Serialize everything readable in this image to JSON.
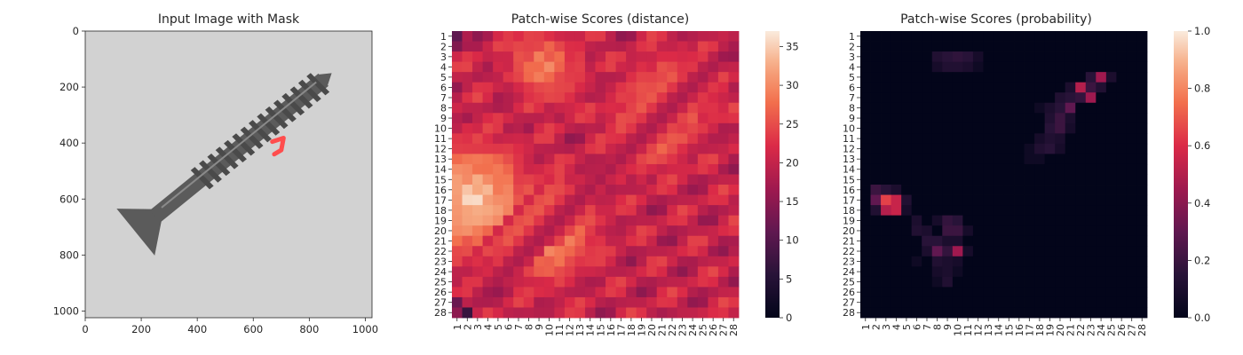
{
  "chart_data": [
    {
      "type": "image",
      "title": "Input Image with Mask",
      "x_ticks": [
        "0",
        "200",
        "400",
        "600",
        "800",
        "1000"
      ],
      "y_ticks": [
        "0",
        "200",
        "400",
        "600",
        "800",
        "1000"
      ],
      "x_range": [
        0,
        1024
      ],
      "y_range": [
        0,
        1024
      ],
      "image": {
        "object": "screw",
        "background_color": "#d2d2d2",
        "object_color": "#5b5b5b",
        "mask_color": "#ff4d4d",
        "head_center": [
          180,
          718
        ],
        "tip": [
          880,
          150
        ],
        "mask_points": [
          [
            668,
            395
          ],
          [
            708,
            382
          ],
          [
            700,
            425
          ],
          [
            675,
            440
          ]
        ]
      }
    },
    {
      "type": "heatmap",
      "title": "Patch-wise Scores (distance)",
      "x_labels": [
        "1",
        "2",
        "3",
        "4",
        "5",
        "6",
        "7",
        "8",
        "9",
        "10",
        "11",
        "12",
        "13",
        "14",
        "15",
        "16",
        "17",
        "18",
        "19",
        "20",
        "21",
        "22",
        "23",
        "24",
        "25",
        "26",
        "27",
        "28"
      ],
      "y_labels": [
        "1",
        "2",
        "3",
        "4",
        "5",
        "6",
        "7",
        "8",
        "9",
        "10",
        "11",
        "12",
        "13",
        "14",
        "15",
        "16",
        "17",
        "18",
        "19",
        "20",
        "21",
        "22",
        "23",
        "24",
        "25",
        "26",
        "27",
        "28"
      ],
      "colorbar": {
        "min": 0,
        "max": 37,
        "ticks": [
          "0",
          "5",
          "10",
          "15",
          "20",
          "25",
          "30",
          "35"
        ]
      },
      "colormap": "rocket",
      "grid_size": 28,
      "value_model": {
        "base": 20,
        "background_hotspots": [
          {
            "row": 17,
            "col": 2.5,
            "value": 36
          },
          {
            "row": 4,
            "col": 9.5,
            "value": 30
          },
          {
            "row": 20,
            "col": 9.5,
            "value": 34
          },
          {
            "row": 7,
            "col": 22,
            "value": 31
          },
          {
            "row": 10,
            "col": 20,
            "value": 31
          }
        ],
        "low_values": [
          {
            "row": 1,
            "col": 1,
            "value": 11
          },
          {
            "row": 28,
            "col": 2,
            "value": 7
          },
          {
            "row": 27,
            "col": 1,
            "value": 12
          },
          {
            "row": 2,
            "col": 1,
            "value": 14
          }
        ]
      }
    },
    {
      "type": "heatmap",
      "title": "Patch-wise Scores (probability)",
      "x_labels": [
        "1",
        "2",
        "3",
        "4",
        "5",
        "6",
        "7",
        "8",
        "9",
        "10",
        "11",
        "12",
        "13",
        "14",
        "15",
        "16",
        "17",
        "18",
        "19",
        "20",
        "21",
        "22",
        "23",
        "24",
        "25",
        "26",
        "27",
        "28"
      ],
      "y_labels": [
        "1",
        "2",
        "3",
        "4",
        "5",
        "6",
        "7",
        "8",
        "9",
        "10",
        "11",
        "12",
        "13",
        "14",
        "15",
        "16",
        "17",
        "18",
        "19",
        "20",
        "21",
        "22",
        "23",
        "24",
        "25",
        "26",
        "27",
        "28"
      ],
      "colorbar": {
        "min": 0.0,
        "max": 1.0,
        "ticks": [
          "0.0",
          "0.2",
          "0.4",
          "0.6",
          "0.8",
          "1.0"
        ]
      },
      "colormap": "rocket",
      "grid_size": 28,
      "nonzero_cells": [
        [
          3,
          9,
          0.15
        ],
        [
          3,
          10,
          0.17
        ],
        [
          3,
          11,
          0.15
        ],
        [
          3,
          8,
          0.12
        ],
        [
          3,
          12,
          0.08
        ],
        [
          4,
          9,
          0.12
        ],
        [
          4,
          10,
          0.12
        ],
        [
          4,
          11,
          0.1
        ],
        [
          4,
          8,
          0.08
        ],
        [
          4,
          12,
          0.05
        ],
        [
          5,
          24,
          0.45
        ],
        [
          5,
          23,
          0.15
        ],
        [
          5,
          25,
          0.1
        ],
        [
          6,
          22,
          0.5
        ],
        [
          6,
          23,
          0.2
        ],
        [
          6,
          24,
          0.12
        ],
        [
          6,
          21,
          0.1
        ],
        [
          7,
          22,
          0.18
        ],
        [
          7,
          23,
          0.45
        ],
        [
          7,
          20,
          0.12
        ],
        [
          7,
          21,
          0.15
        ],
        [
          8,
          20,
          0.15
        ],
        [
          8,
          21,
          0.3
        ],
        [
          8,
          19,
          0.1
        ],
        [
          8,
          18,
          0.05
        ],
        [
          9,
          20,
          0.2
        ],
        [
          9,
          19,
          0.12
        ],
        [
          9,
          21,
          0.1
        ],
        [
          10,
          20,
          0.2
        ],
        [
          10,
          19,
          0.15
        ],
        [
          10,
          21,
          0.08
        ],
        [
          11,
          19,
          0.12
        ],
        [
          11,
          18,
          0.08
        ],
        [
          11,
          20,
          0.1
        ],
        [
          12,
          19,
          0.15
        ],
        [
          12,
          18,
          0.12
        ],
        [
          12,
          20,
          0.08
        ],
        [
          12,
          17,
          0.05
        ],
        [
          13,
          17,
          0.05
        ],
        [
          13,
          18,
          0.05
        ],
        [
          16,
          2,
          0.2
        ],
        [
          16,
          3,
          0.15
        ],
        [
          16,
          4,
          0.1
        ],
        [
          17,
          2,
          0.3
        ],
        [
          17,
          3,
          0.65
        ],
        [
          17,
          4,
          0.55
        ],
        [
          17,
          5,
          0.12
        ],
        [
          18,
          3,
          0.5
        ],
        [
          18,
          4,
          0.55
        ],
        [
          18,
          2,
          0.12
        ],
        [
          18,
          5,
          0.08
        ],
        [
          19,
          6,
          0.1
        ],
        [
          19,
          9,
          0.18
        ],
        [
          19,
          10,
          0.15
        ],
        [
          19,
          8,
          0.08
        ],
        [
          20,
          6,
          0.12
        ],
        [
          20,
          7,
          0.1
        ],
        [
          20,
          9,
          0.2
        ],
        [
          20,
          10,
          0.2
        ],
        [
          20,
          11,
          0.08
        ],
        [
          21,
          7,
          0.15
        ],
        [
          21,
          8,
          0.15
        ],
        [
          21,
          9,
          0.1
        ],
        [
          21,
          10,
          0.1
        ],
        [
          22,
          8,
          0.3
        ],
        [
          22,
          9,
          0.18
        ],
        [
          22,
          10,
          0.45
        ],
        [
          22,
          7,
          0.1
        ],
        [
          22,
          11,
          0.08
        ],
        [
          23,
          8,
          0.12
        ],
        [
          23,
          9,
          0.1
        ],
        [
          23,
          10,
          0.08
        ],
        [
          23,
          6,
          0.05
        ],
        [
          24,
          8,
          0.08
        ],
        [
          24,
          9,
          0.1
        ],
        [
          24,
          10,
          0.05
        ],
        [
          25,
          9,
          0.12
        ],
        [
          25,
          8,
          0.05
        ]
      ]
    }
  ]
}
